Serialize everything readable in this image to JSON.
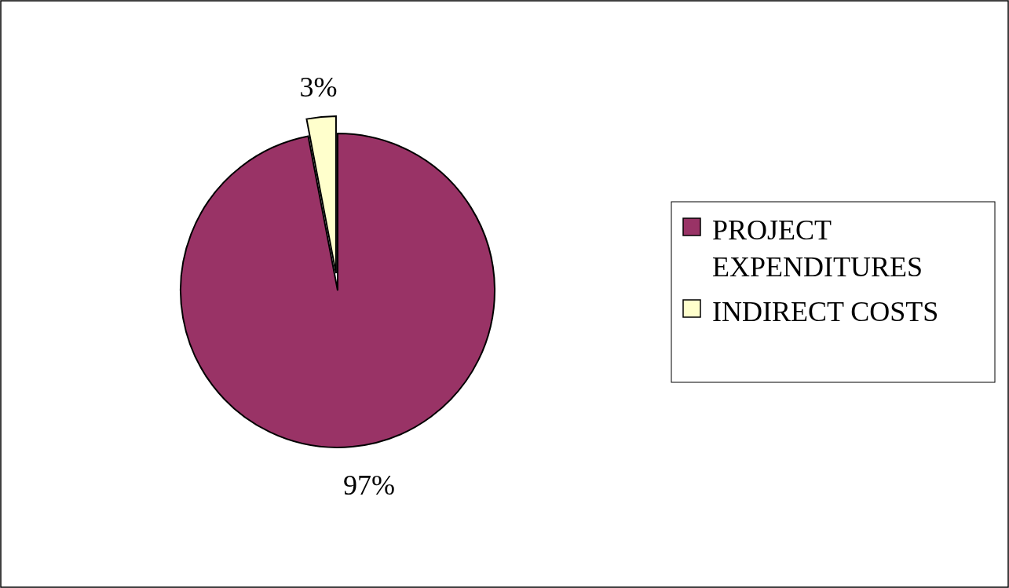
{
  "chart_data": {
    "type": "pie",
    "categories": [
      "PROJECT EXPENDITURES",
      "INDIRECT COSTS"
    ],
    "values": [
      97,
      3
    ],
    "colors": [
      "#993366",
      "#ffffcc"
    ],
    "value_labels": [
      "97%",
      "3%"
    ],
    "legend": "right"
  }
}
